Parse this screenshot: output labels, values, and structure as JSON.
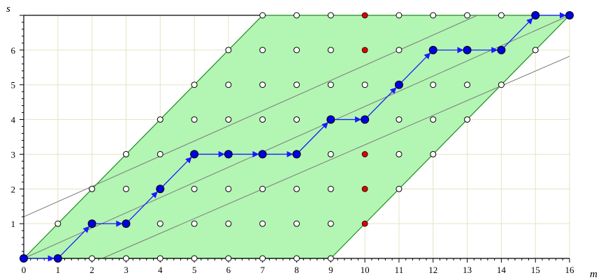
{
  "chart_data": {
    "type": "scatter",
    "title": "",
    "xlabel": "m",
    "ylabel": "s",
    "xlim": [
      0,
      16
    ],
    "ylim": [
      0,
      7
    ],
    "x_ticks": [
      0,
      1,
      2,
      3,
      4,
      5,
      6,
      7,
      8,
      9,
      10,
      11,
      12,
      13,
      14,
      15,
      16
    ],
    "y_ticks": [
      1,
      2,
      3,
      4,
      5,
      6
    ],
    "grid": true,
    "colors": {
      "region_fill": "#b3f5b3",
      "region_edge": "#1f8a1f",
      "grid": "#e6e2c4",
      "path": "#1a1aff",
      "path_point": "#0000e0",
      "red_point": "#e00000",
      "open_point": "#ffffff",
      "ref_line": "#7a7a7a"
    },
    "region": {
      "vertices": [
        [
          0,
          0
        ],
        [
          9,
          0
        ],
        [
          16,
          7
        ],
        [
          7,
          7
        ]
      ]
    },
    "reference_lines": [
      {
        "points": [
          [
            0,
            1.2
          ],
          [
            13.3,
            7
          ]
        ]
      },
      {
        "points": [
          [
            0,
            0
          ],
          [
            16,
            7
          ]
        ]
      },
      {
        "points": [
          [
            2.3,
            0
          ],
          [
            16,
            5.82
          ]
        ]
      }
    ],
    "lattice_rows": [
      {
        "s": 0,
        "m_from": 0,
        "m_to": 9
      },
      {
        "s": 1,
        "m_from": 1,
        "m_to": 10
      },
      {
        "s": 2,
        "m_from": 2,
        "m_to": 11
      },
      {
        "s": 3,
        "m_from": 3,
        "m_to": 12
      },
      {
        "s": 4,
        "m_from": 4,
        "m_to": 13
      },
      {
        "s": 5,
        "m_from": 5,
        "m_to": 14
      },
      {
        "s": 6,
        "m_from": 6,
        "m_to": 15
      },
      {
        "s": 7,
        "m_from": 7,
        "m_to": 16
      }
    ],
    "red_points": [
      [
        10,
        1
      ],
      [
        10,
        2
      ],
      [
        10,
        3
      ],
      [
        10,
        6
      ],
      [
        10,
        7
      ]
    ],
    "path": [
      [
        0,
        0
      ],
      [
        1,
        0
      ],
      [
        2,
        1
      ],
      [
        3,
        1
      ],
      [
        4,
        2
      ],
      [
        5,
        3
      ],
      [
        6,
        3
      ],
      [
        7,
        3
      ],
      [
        8,
        3
      ],
      [
        9,
        4
      ],
      [
        10,
        4
      ],
      [
        11,
        5
      ],
      [
        12,
        6
      ],
      [
        13,
        6
      ],
      [
        14,
        6
      ],
      [
        15,
        7
      ],
      [
        16,
        7
      ]
    ]
  }
}
